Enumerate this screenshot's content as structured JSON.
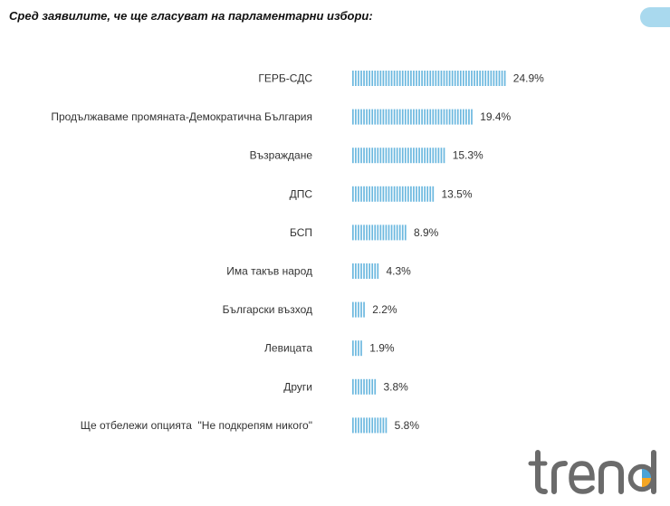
{
  "chart_data": {
    "type": "bar",
    "orientation": "horizontal",
    "title": "Сред заявилите, че ще гласуват на парламентарни избори:",
    "categories": [
      "ГЕРБ-СДС",
      "Продължаваме промяната-Демократична България",
      "Възраждане",
      "ДПС",
      "БСП",
      "Има такъв народ",
      "Български възход",
      "Левицата",
      "Други",
      "Ще отбележи опцията  \"Не подкрепям никого\""
    ],
    "values": [
      24.9,
      19.4,
      15.3,
      13.5,
      8.9,
      4.3,
      2.2,
      1.9,
      3.8,
      5.8
    ],
    "value_labels": [
      "24.9%",
      "19.4%",
      "15.3%",
      "13.5%",
      "8.9%",
      "4.3%",
      "2.2%",
      "1.9%",
      "3.8%",
      "5.8%"
    ],
    "unit": "%",
    "xlim": [
      0,
      25
    ],
    "bar_color": "#6cb8df",
    "xlabel": "",
    "ylabel": ""
  },
  "logo": {
    "text": "trend",
    "color": "#6b6b6b",
    "accent": "#f5a623",
    "accent2": "#4aa3d8"
  },
  "header": {
    "tab_color": "#a9d9ee"
  }
}
